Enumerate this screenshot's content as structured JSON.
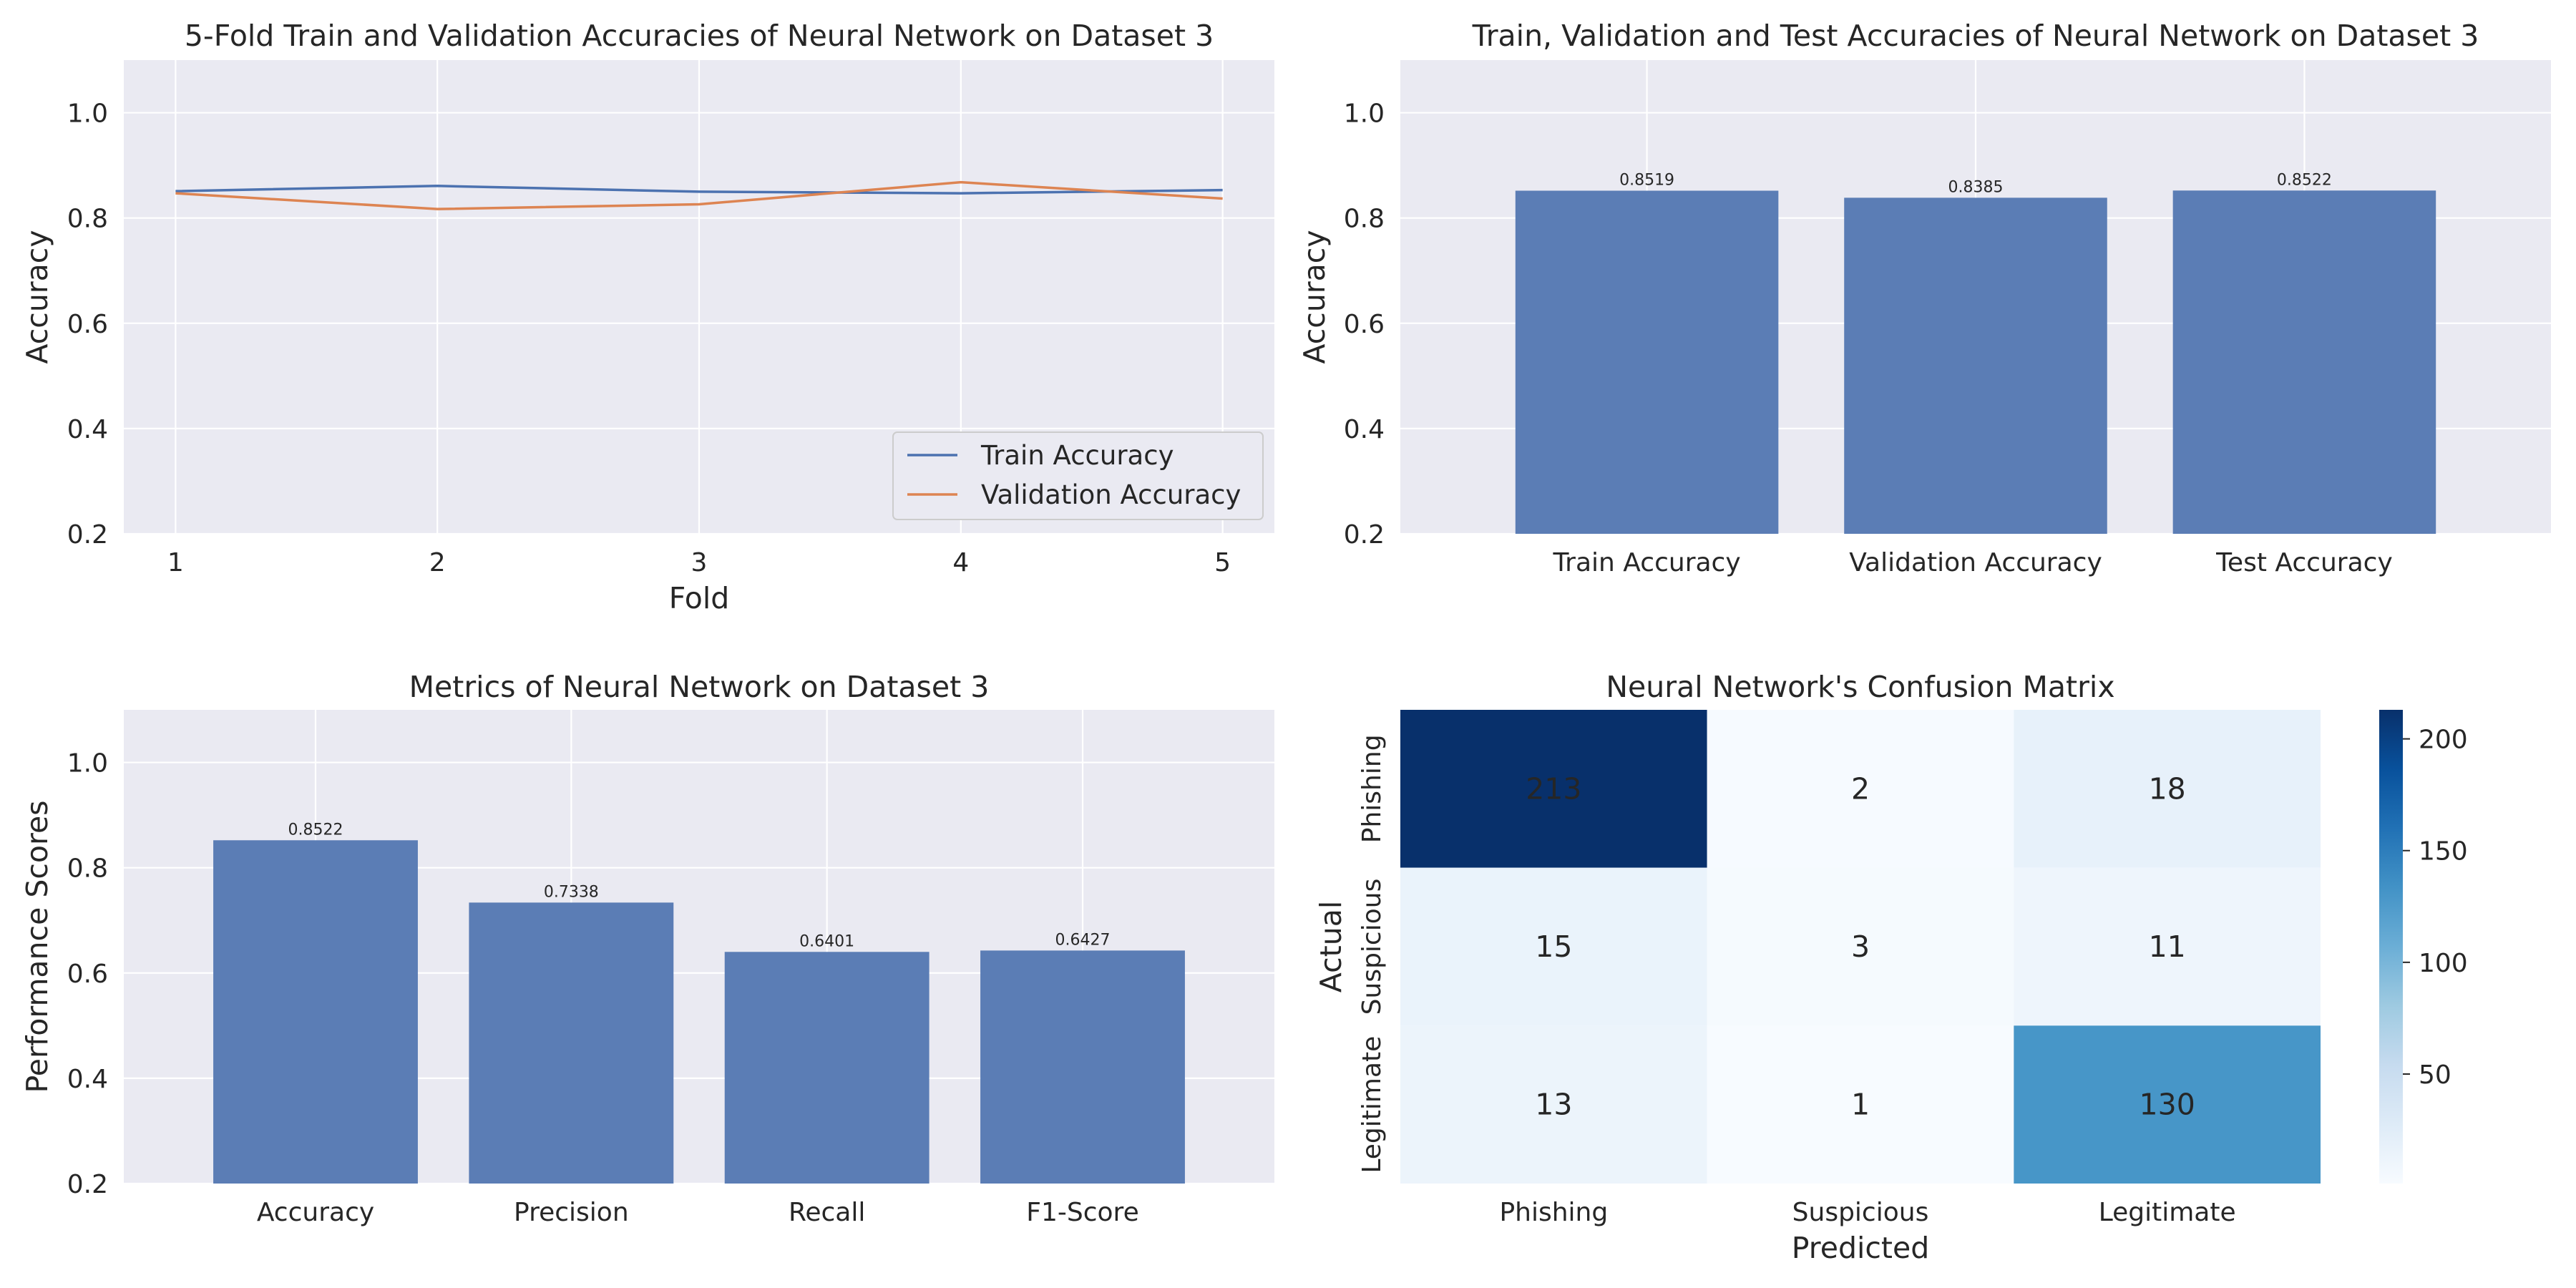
{
  "chart_data": [
    {
      "type": "line",
      "title": "5-Fold Train and Validation Accuracies of Neural Network on Dataset 3",
      "xlabel": "Fold",
      "ylabel": "Accuracy",
      "x": [
        1,
        2,
        3,
        4,
        5
      ],
      "xticklabels": [
        "1",
        "2",
        "3",
        "4",
        "5"
      ],
      "ylim": [
        0.2,
        1.1
      ],
      "yticks": [
        0.2,
        0.4,
        0.6,
        0.8,
        1.0
      ],
      "yticklabels": [
        "0.2",
        "0.4",
        "0.6",
        "0.8",
        "1.0"
      ],
      "grid": true,
      "legend_position": "lower right",
      "series": [
        {
          "name": "Train Accuracy",
          "color": "#4c72b0",
          "values": [
            0.851,
            0.861,
            0.85,
            0.847,
            0.853
          ]
        },
        {
          "name": "Validation Accuracy",
          "color": "#dd8452",
          "values": [
            0.847,
            0.817,
            0.826,
            0.868,
            0.837
          ]
        }
      ]
    },
    {
      "type": "bar",
      "title": "Train, Validation and Test Accuracies of Neural Network on Dataset 3",
      "xlabel": "",
      "ylabel": "Accuracy",
      "categories": [
        "Train Accuracy",
        "Validation Accuracy",
        "Test Accuracy"
      ],
      "values": [
        0.8519,
        0.8385,
        0.8522
      ],
      "data_labels": [
        "0.8519",
        "0.8385",
        "0.8522"
      ],
      "ylim": [
        0.2,
        1.1
      ],
      "yticks": [
        0.2,
        0.4,
        0.6,
        0.8,
        1.0
      ],
      "yticklabels": [
        "0.2",
        "0.4",
        "0.6",
        "0.8",
        "1.0"
      ],
      "color": "#5b7db5",
      "grid": true
    },
    {
      "type": "bar",
      "title": "Metrics of Neural Network on Dataset 3",
      "xlabel": "",
      "ylabel": "Performance Scores",
      "categories": [
        "Accuracy",
        "Precision",
        "Recall",
        "F1-Score"
      ],
      "values": [
        0.8522,
        0.7338,
        0.6401,
        0.6427
      ],
      "data_labels": [
        "0.8522",
        "0.7338",
        "0.6401",
        "0.6427"
      ],
      "ylim": [
        0.2,
        1.1
      ],
      "yticks": [
        0.2,
        0.4,
        0.6,
        0.8,
        1.0
      ],
      "yticklabels": [
        "0.2",
        "0.4",
        "0.6",
        "0.8",
        "1.0"
      ],
      "color": "#5b7db5",
      "grid": true
    },
    {
      "type": "heatmap",
      "title": "Neural Network's Confusion Matrix",
      "xlabel": "Predicted",
      "ylabel": "Actual",
      "x_categories": [
        "Phishing",
        "Suspicious",
        "Legitimate"
      ],
      "y_categories": [
        "Phishing",
        "Suspicious",
        "Legitimate"
      ],
      "values": [
        [
          213,
          2,
          18
        ],
        [
          15,
          3,
          11
        ],
        [
          13,
          1,
          130
        ]
      ],
      "colormap": "Blues",
      "vmin": 1,
      "vmax": 213,
      "colorbar_ticks": [
        50,
        100,
        150,
        200
      ],
      "colorbar_ticklabels": [
        "50",
        "100",
        "150",
        "200"
      ]
    }
  ]
}
